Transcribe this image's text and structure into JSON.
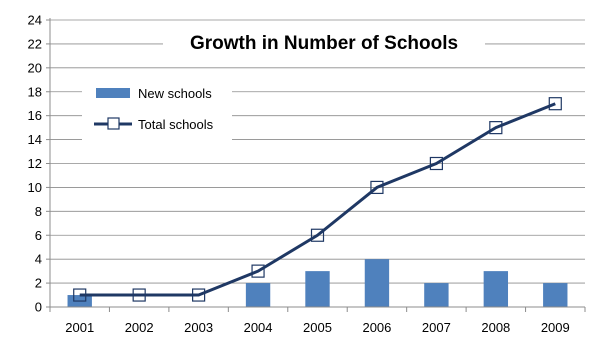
{
  "chart_data": {
    "type": "bar",
    "title": "Growth in Number of Schools",
    "categories": [
      "2001",
      "2002",
      "2003",
      "2004",
      "2005",
      "2006",
      "2007",
      "2008",
      "2009"
    ],
    "series": [
      {
        "name": "New schools",
        "type": "bar",
        "color": "#4F81BD",
        "values": [
          1,
          0,
          0,
          2,
          3,
          4,
          2,
          3,
          2
        ]
      },
      {
        "name": "Total schools",
        "type": "line",
        "color": "#1F3864",
        "marker": "open-square",
        "values": [
          1,
          1,
          1,
          3,
          6,
          10,
          12,
          15,
          17
        ]
      }
    ],
    "ylim": [
      0,
      24
    ],
    "yticks": [
      0,
      2,
      4,
      6,
      8,
      10,
      12,
      14,
      16,
      18,
      20,
      22,
      24
    ],
    "grid": true,
    "legend_position": "left"
  }
}
